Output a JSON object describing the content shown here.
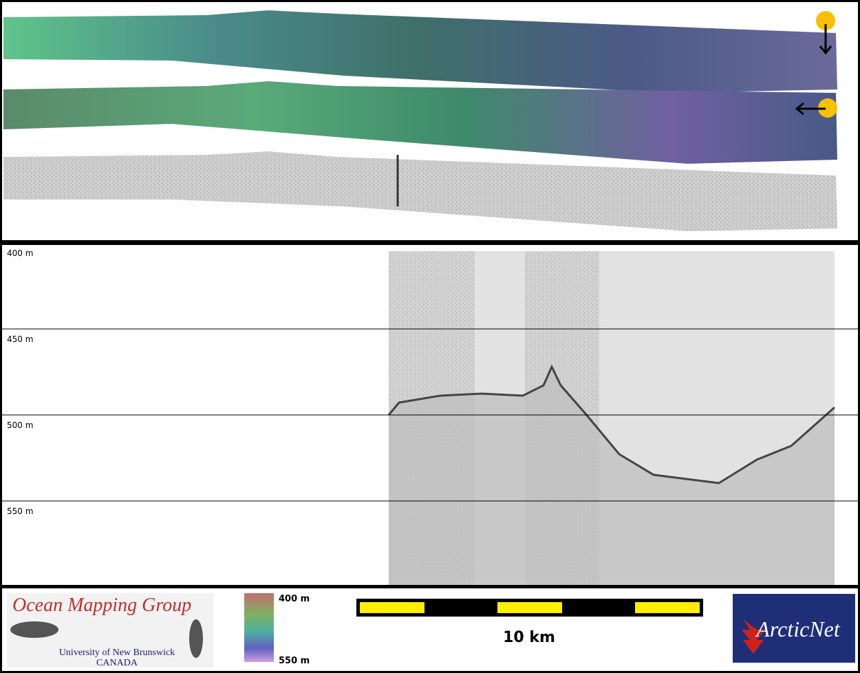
{
  "profile": {
    "depth_labels": [
      "400 m",
      "450 m",
      "500 m",
      "550 m"
    ]
  },
  "logo": {
    "title": "Ocean Mapping Group",
    "university": "University of New Brunswick",
    "country": "CANADA"
  },
  "colorbar": {
    "top_label": "400 m",
    "bottom_label": "550 m"
  },
  "scale_bar": {
    "label": "10 km"
  },
  "partner_logo": {
    "name": "ArcticNet"
  }
}
